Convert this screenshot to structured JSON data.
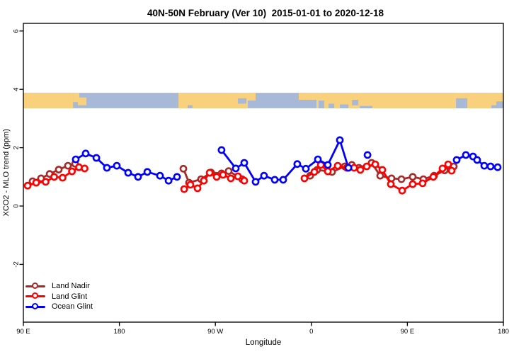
{
  "title": "40N-50N February (Ver 10)  2015-01-01 to 2020-12-18",
  "chart_data": {
    "type": "line",
    "title": "40N-50N February (Ver 10)  2015-01-01 to 2020-12-18",
    "xlabel": "Longitude",
    "ylabel": "XCO2 - MLO trend (ppm)",
    "grid": false,
    "legend_position": "bottom-left",
    "x_axis": {
      "label": "Longitude",
      "xlim_deg": [
        90,
        540
      ],
      "ticks": [
        [
          90,
          "90 E"
        ],
        [
          180,
          "180"
        ],
        [
          270,
          "90 W"
        ],
        [
          360,
          "0"
        ],
        [
          450,
          "90 E"
        ],
        [
          540,
          "180"
        ]
      ]
    },
    "y_axis": {
      "label": "XCO2 - MLO trend (ppm)",
      "ylim": [
        -4.0,
        6.25
      ],
      "ticks": [
        [
          -2,
          "-2"
        ],
        [
          0,
          "0"
        ],
        [
          2,
          "2"
        ],
        [
          4,
          "4"
        ],
        [
          6,
          "6"
        ]
      ]
    },
    "map_band": {
      "description": "world-map latitude strip 40N-50N drawn across plot",
      "value_top": 3.88,
      "value_bottom": 3.35,
      "land_color": "#F9D07C",
      "ocean_color": "#A8B9D8",
      "land": [
        [
          90,
          136.5,
          0,
          1
        ],
        [
          136.5,
          142.4,
          0,
          0.6
        ],
        [
          141.1,
          149.1,
          0.3,
          0.8
        ],
        [
          235.4,
          300.4,
          0,
          1
        ],
        [
          300.4,
          307.7,
          0,
          0.5
        ],
        [
          348.2,
          364.8,
          0,
          0.45
        ],
        [
          364.8,
          540,
          0,
          1
        ]
      ],
      "ocean_patches": [
        [
          244.0,
          248.6,
          0.8,
          1
        ],
        [
          291.1,
          299.1,
          0.35,
          0.7
        ],
        [
          366.8,
          372.1,
          0.5,
          1
        ],
        [
          376.1,
          381.4,
          0.7,
          1
        ],
        [
          386.7,
          394.7,
          0.75,
          1
        ],
        [
          398.0,
          404.0,
          0.45,
          0.8
        ],
        [
          405.3,
          417.2,
          0.85,
          1
        ],
        [
          495.6,
          506.2,
          0.35,
          1
        ],
        [
          528.7,
          534.0,
          0.8,
          1
        ],
        [
          533.3,
          540.0,
          0.55,
          1
        ]
      ]
    },
    "series": [
      {
        "name": "Land Nadir",
        "color": "#A52A2A",
        "segments": [
          [
            [
              98.6,
              0.85
            ],
            [
              106.6,
              0.95
            ],
            [
              114.6,
              1.1
            ],
            [
              123.2,
              1.25
            ],
            [
              131.8,
              1.38
            ],
            [
              138.5,
              1.45
            ]
          ],
          [
            [
              240.0,
              1.28
            ],
            [
              245.3,
              0.8
            ],
            [
              256.6,
              0.92
            ],
            [
              265.9,
              1.15
            ],
            [
              275.8,
              1.12
            ],
            [
              282.5,
              1.2
            ],
            [
              295.1,
              0.92
            ]
          ],
          [
            [
              358.8,
              1.04
            ],
            [
              365.4,
              1.24
            ],
            [
              379.4,
              1.17
            ],
            [
              391.3,
              1.36
            ],
            [
              397.9,
              1.41
            ],
            [
              404.6,
              1.31
            ],
            [
              416.5,
              1.48
            ],
            [
              424.5,
              1.04
            ],
            [
              435.1,
              0.95
            ],
            [
              444.4,
              0.92
            ],
            [
              455.0,
              1.0
            ],
            [
              465.0,
              0.92
            ],
            [
              475.0,
              1.04
            ],
            [
              484.9,
              1.22
            ],
            [
              493.5,
              1.36
            ]
          ]
        ]
      },
      {
        "name": "Land Glint",
        "color": "#FF0000",
        "segments": [
          [
            [
              94.0,
              0.7
            ],
            [
              102.0,
              0.8
            ],
            [
              110.9,
              0.83
            ],
            [
              118.9,
              1.0
            ],
            [
              126.8,
              0.97
            ],
            [
              135.5,
              1.19
            ],
            [
              142.1,
              1.33
            ],
            [
              147.4,
              1.29
            ]
          ],
          [
            [
              240.7,
              0.58
            ],
            [
              246.6,
              0.73
            ],
            [
              253.3,
              0.61
            ],
            [
              259.2,
              0.87
            ],
            [
              264.6,
              1.14
            ],
            [
              271.2,
              1.0
            ],
            [
              277.2,
              1.07
            ],
            [
              284.5,
              0.95
            ],
            [
              291.1,
              1.02
            ],
            [
              297.1,
              0.87
            ]
          ],
          [
            [
              353.5,
              0.95
            ],
            [
              362.8,
              1.17
            ],
            [
              368.8,
              1.41
            ],
            [
              375.4,
              1.19
            ],
            [
              384.7,
              1.38
            ],
            [
              393.3,
              1.31
            ],
            [
              400.0,
              1.31
            ],
            [
              405.9,
              1.24
            ],
            [
              411.9,
              1.36
            ],
            [
              419.9,
              1.43
            ],
            [
              426.5,
              1.24
            ],
            [
              434.5,
              0.75
            ],
            [
              445.1,
              0.53
            ],
            [
              455.0,
              0.75
            ],
            [
              464.3,
              0.78
            ],
            [
              474.3,
              1.0
            ],
            [
              482.9,
              1.29
            ],
            [
              488.2,
              1.43
            ],
            [
              491.5,
              1.21
            ]
          ]
        ]
      },
      {
        "name": "Ocean Glint",
        "color": "#0000FF",
        "segments": [
          [
            [
              139.1,
              1.6
            ],
            [
              148.4,
              1.8
            ],
            [
              158.4,
              1.65
            ],
            [
              168.3,
              1.31
            ],
            [
              177.6,
              1.38
            ],
            [
              188.2,
              1.14
            ],
            [
              197.5,
              1.0
            ],
            [
              206.2,
              1.17
            ],
            [
              218.1,
              1.04
            ],
            [
              226.1,
              0.87
            ],
            [
              234.0,
              1.0
            ]
          ],
          [
            [
              275.8,
              1.92
            ],
            [
              289.1,
              1.29
            ],
            [
              297.1,
              1.48
            ],
            [
              307.7,
              0.83
            ],
            [
              315.6,
              1.04
            ],
            [
              325.6,
              0.9
            ],
            [
              333.6,
              0.9
            ],
            [
              346.8,
              1.44
            ],
            [
              354.8,
              1.28
            ],
            [
              366.1,
              1.6
            ],
            [
              375.4,
              1.41
            ],
            [
              386.7,
              2.26
            ],
            [
              394.7,
              1.31
            ]
          ],
          [
            [
              412.6,
              1.75
            ]
          ],
          [
            [
              496.2,
              1.58
            ],
            [
              504.8,
              1.75
            ],
            [
              511.5,
              1.7
            ],
            [
              515.4,
              1.58
            ],
            [
              522.1,
              1.38
            ],
            [
              528.0,
              1.36
            ],
            [
              534.6,
              1.33
            ]
          ]
        ]
      }
    ],
    "legend": [
      "Land Nadir",
      "Land Glint",
      "Ocean Glint"
    ]
  }
}
